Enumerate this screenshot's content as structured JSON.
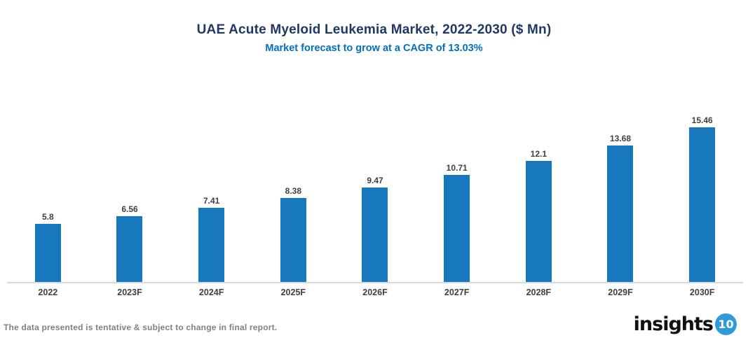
{
  "chart_data": {
    "type": "bar",
    "title": "UAE Acute Myeloid Leukemia Market, 2022-2030 ($ Mn)",
    "subtitle": "Market forecast to grow at a CAGR of 13.03%",
    "cagr": "13.03%",
    "categories": [
      "2022",
      "2023F",
      "2024F",
      "2025F",
      "2026F",
      "2027F",
      "2028F",
      "2029F",
      "2030F"
    ],
    "values": [
      5.8,
      6.56,
      7.41,
      8.38,
      9.47,
      10.71,
      12.1,
      13.68,
      15.46
    ],
    "value_labels": [
      "5.8",
      "6.56",
      "7.41",
      "8.38",
      "9.47",
      "10.71",
      "12.1",
      "13.68",
      "15.46"
    ],
    "xlabel": "",
    "ylabel": "",
    "ylim": [
      0,
      16.8
    ],
    "grid": false,
    "legend": "none",
    "bar_color": "#1778BE"
  },
  "colors": {
    "title": "#1F3864",
    "subtitle": "#0070C0",
    "bar": "#1778BE",
    "data_label": "#404040",
    "axis_line": "#D9D9D9",
    "disclaimer": "#808080",
    "logo_circle": "#2E9BD6"
  },
  "footer": {
    "disclaimer": "The data presented is tentative & subject to change in final report.",
    "logo_text": "insights",
    "logo_number": "10"
  }
}
